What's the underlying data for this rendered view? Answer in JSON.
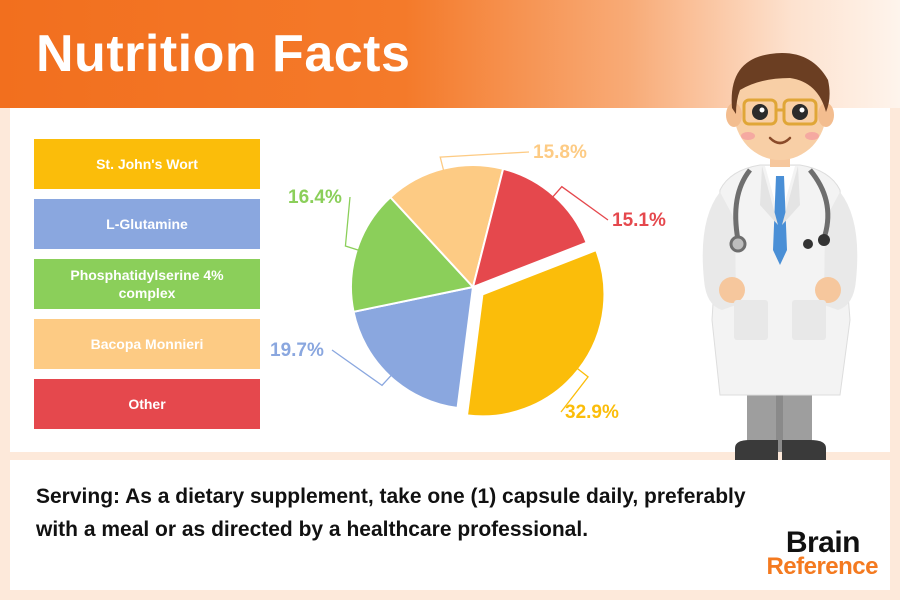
{
  "header": {
    "title": "Nutrition Facts"
  },
  "colors": {
    "header_orange": "#f26f1e",
    "st_johns_wort": "#fbbd0a",
    "l_glutamine": "#8aa7df",
    "phosphatidylserine": "#8bcf5a",
    "bacopa": "#fdcb84",
    "other": "#e5484d"
  },
  "legend": [
    {
      "label": "St. John's Wort",
      "color": "#fbbd0a"
    },
    {
      "label": "L-Glutamine",
      "color": "#8aa7df"
    },
    {
      "label": "Phosphatidylserine 4% complex",
      "color": "#8bcf5a"
    },
    {
      "label": "Bacopa Monnieri",
      "color": "#fdcb84"
    },
    {
      "label": "Other",
      "color": "#e5484d"
    }
  ],
  "chart_data": {
    "type": "pie",
    "categories": [
      "St. John's Wort",
      "L-Glutamine",
      "Phosphatidylserine 4% complex",
      "Bacopa Monnieri",
      "Other"
    ],
    "values": [
      32.9,
      19.7,
      16.4,
      15.8,
      15.1
    ],
    "labels": [
      "32.9%",
      "19.7%",
      "16.4%",
      "15.8%",
      "15.1%"
    ],
    "colors": [
      "#fbbd0a",
      "#8aa7df",
      "#8bcf5a",
      "#fdcb84",
      "#e5484d"
    ],
    "exploded": "St. John's Wort",
    "legend_position": "left"
  },
  "footer": {
    "serving_text": "Serving: As a dietary supplement, take one (1) capsule daily, preferably with a meal or as directed by a healthcare professional."
  },
  "logo": {
    "line1": "Brain",
    "line2": "Reference"
  },
  "illustration": {
    "icon": "doctor-illustration-icon"
  }
}
